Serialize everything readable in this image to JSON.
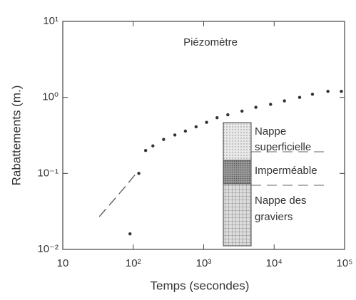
{
  "chart_data": {
    "type": "scatter",
    "annotation": "Piézomètre",
    "x_label": "Temps (secondes)",
    "y_label": "Rabattements (m.)",
    "log_x": true,
    "log_y": true,
    "xlim": [
      10,
      100000
    ],
    "xticks": [
      10,
      {
        "value": 100,
        "label": "10²"
      },
      {
        "value": 1000,
        "label": "10³"
      },
      {
        "value": 10000,
        "label": "10⁴"
      },
      {
        "value": 100000,
        "label": "10⁵"
      }
    ],
    "ylim": [
      0.01,
      10
    ],
    "yticks": [
      {
        "value": 0.01,
        "label": "10⁻²"
      },
      {
        "value": 0.1,
        "label": "10⁻¹"
      },
      {
        "value": 1,
        "label": "10⁰"
      },
      {
        "value": 10,
        "label": "10¹"
      }
    ],
    "series": [
      {
        "marker": "dot",
        "color": "#333333",
        "x": [
          90,
          120,
          150,
          190,
          270,
          390,
          550,
          780,
          1100,
          1550,
          2200,
          3500,
          5500,
          8900,
          14000,
          23000,
          35000,
          58000,
          90000
        ],
        "values": [
          0.016,
          0.1,
          0.2,
          0.23,
          0.28,
          0.32,
          0.36,
          0.41,
          0.47,
          0.54,
          0.59,
          0.66,
          0.74,
          0.81,
          0.9,
          1.0,
          1.1,
          1.2,
          1.2
        ]
      },
      {
        "marker": "dashed-line",
        "color": "#555555",
        "x": [
          33,
          50,
          75,
          110
        ],
        "values": [
          0.027,
          0.042,
          0.065,
          0.1
        ]
      }
    ],
    "inset_labels": [
      [
        "Nappe",
        "superficielle"
      ],
      [
        "Imperméable"
      ],
      [
        "Nappe des",
        "graviers"
      ]
    ]
  }
}
